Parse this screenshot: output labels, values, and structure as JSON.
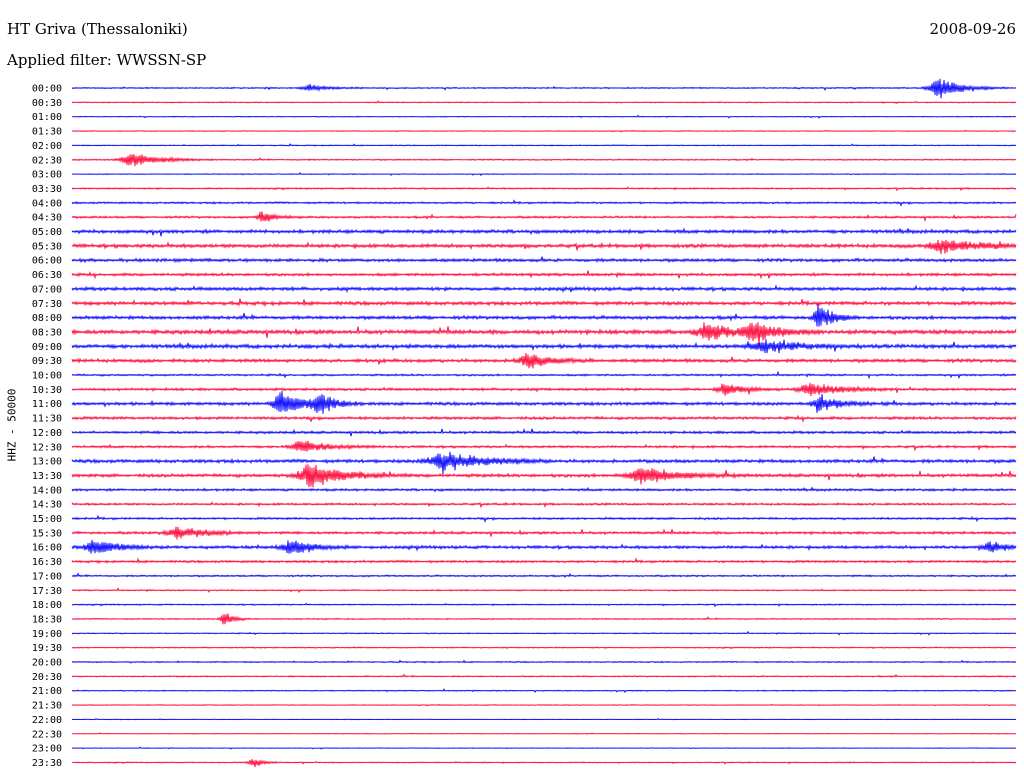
{
  "header": {
    "station": "HT Griva (Thessaloniki)",
    "date": "2008-09-26",
    "filter": "Applied filter: WWSSN-SP",
    "channel": "HHZ - 50000"
  },
  "colors": {
    "blue": "#0000ff",
    "red": "#ff0033"
  },
  "chart_data": {
    "type": "line",
    "title": "HT Griva (Thessaloniki)",
    "ylabel": "HHZ - 50000",
    "row_labels": [
      "00:00",
      "00:30",
      "01:00",
      "01:30",
      "02:00",
      "02:30",
      "03:00",
      "03:30",
      "04:00",
      "04:30",
      "05:00",
      "05:30",
      "06:00",
      "06:30",
      "07:00",
      "07:30",
      "08:00",
      "08:30",
      "09:00",
      "09:30",
      "10:00",
      "10:30",
      "11:00",
      "11:30",
      "12:00",
      "12:30",
      "13:00",
      "13:30",
      "14:00",
      "14:30",
      "15:00",
      "15:30",
      "16:00",
      "16:30",
      "17:00",
      "17:30",
      "18:00",
      "18:30",
      "19:00",
      "19:30",
      "20:00",
      "20:30",
      "21:00",
      "21:30",
      "22:00",
      "22:30",
      "23:00",
      "23:30"
    ],
    "row_colors": [
      "blue",
      "red"
    ],
    "noise_level": [
      0.6,
      0.5,
      0.4,
      0.4,
      0.5,
      0.6,
      0.4,
      0.7,
      0.9,
      1.0,
      1.6,
      1.7,
      1.5,
      1.3,
      1.6,
      1.7,
      1.6,
      1.9,
      1.8,
      1.6,
      0.9,
      1.2,
      1.5,
      1.3,
      1.2,
      1.1,
      1.6,
      1.5,
      1.1,
      1.0,
      1.0,
      1.2,
      1.4,
      1.1,
      0.8,
      0.6,
      0.6,
      0.6,
      0.5,
      0.5,
      0.6,
      0.6,
      0.5,
      0.4,
      0.3,
      0.3,
      0.3,
      0.5
    ],
    "events": [
      {
        "row": 0,
        "t": 0.25,
        "amp": 4,
        "dur": 0.04
      },
      {
        "row": 0,
        "t": 0.915,
        "amp": 12,
        "dur": 0.05
      },
      {
        "row": 5,
        "t": 0.06,
        "amp": 8,
        "dur": 0.06
      },
      {
        "row": 9,
        "t": 0.2,
        "amp": 6,
        "dur": 0.03
      },
      {
        "row": 11,
        "t": 0.92,
        "amp": 7,
        "dur": 0.08
      },
      {
        "row": 16,
        "t": 0.79,
        "amp": 14,
        "dur": 0.03
      },
      {
        "row": 17,
        "t": 0.67,
        "amp": 9,
        "dur": 0.06
      },
      {
        "row": 17,
        "t": 0.72,
        "amp": 11,
        "dur": 0.05
      },
      {
        "row": 18,
        "t": 0.73,
        "amp": 7,
        "dur": 0.07
      },
      {
        "row": 19,
        "t": 0.48,
        "amp": 8,
        "dur": 0.05
      },
      {
        "row": 21,
        "t": 0.69,
        "amp": 7,
        "dur": 0.04
      },
      {
        "row": 21,
        "t": 0.78,
        "amp": 8,
        "dur": 0.06
      },
      {
        "row": 22,
        "t": 0.22,
        "amp": 14,
        "dur": 0.05
      },
      {
        "row": 22,
        "t": 0.26,
        "amp": 12,
        "dur": 0.03
      },
      {
        "row": 22,
        "t": 0.79,
        "amp": 10,
        "dur": 0.04
      },
      {
        "row": 25,
        "t": 0.24,
        "amp": 6,
        "dur": 0.06
      },
      {
        "row": 26,
        "t": 0.39,
        "amp": 11,
        "dur": 0.08
      },
      {
        "row": 27,
        "t": 0.25,
        "amp": 13,
        "dur": 0.07
      },
      {
        "row": 27,
        "t": 0.6,
        "amp": 9,
        "dur": 0.08
      },
      {
        "row": 31,
        "t": 0.11,
        "amp": 7,
        "dur": 0.06
      },
      {
        "row": 32,
        "t": 0.02,
        "amp": 9,
        "dur": 0.05
      },
      {
        "row": 32,
        "t": 0.23,
        "amp": 9,
        "dur": 0.05
      },
      {
        "row": 32,
        "t": 0.97,
        "amp": 8,
        "dur": 0.03
      },
      {
        "row": 37,
        "t": 0.16,
        "amp": 9,
        "dur": 0.02
      },
      {
        "row": 47,
        "t": 0.19,
        "amp": 6,
        "dur": 0.02
      }
    ]
  }
}
